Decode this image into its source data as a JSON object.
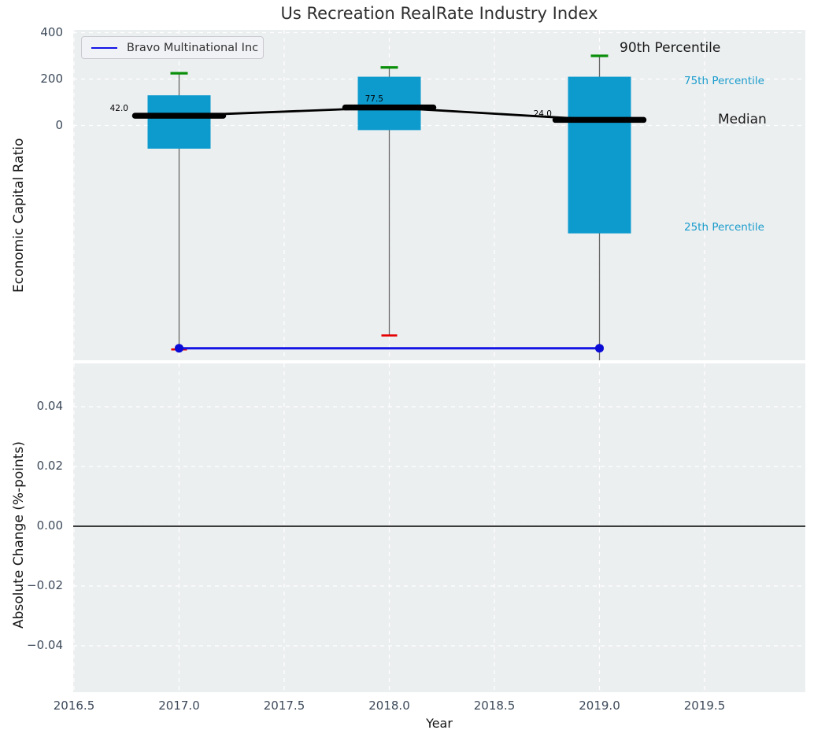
{
  "figure_title": "Us Recreation RealRate Industry Index",
  "chart_data": [
    {
      "type": "boxplot",
      "title": "Us Recreation RealRate Industry Index",
      "ylabel": "Economic Capital Ratio",
      "grid": true,
      "legend_position": "upper left",
      "legend": {
        "label": "Bravo Multinational Inc"
      },
      "ylim": [
        -1012,
        412
      ],
      "xlim": [
        2016.5,
        2019.98
      ],
      "yticks": [
        {
          "v": 400,
          "label": "400"
        },
        {
          "v": 200,
          "label": "200"
        },
        {
          "v": 0,
          "label": "0"
        }
      ],
      "boxes": [
        {
          "year": 2017,
          "p90": 225,
          "q3": 130,
          "median": 42.0,
          "q1": -100,
          "p10": -965,
          "median_label": "42.0"
        },
        {
          "year": 2018,
          "p90": 250,
          "q3": 210,
          "median": 77.5,
          "q1": -20,
          "p10": -905,
          "median_label": "77.5"
        },
        {
          "year": 2019,
          "p90": 300,
          "q3": 210,
          "median": 24.0,
          "q1": -465,
          "p10": -1020,
          "median_label": "24.0"
        }
      ],
      "company_series": {
        "name": "Bravo Multinational Inc",
        "x": [
          2017,
          2019
        ],
        "y": [
          -960,
          -960
        ],
        "markers": "endpoints"
      },
      "annotations": [
        "90th Percentile",
        "75th Percentile",
        "Median",
        "25th Percentile"
      ],
      "colors": {
        "box_fill": "#0d9bce",
        "p90_cap": "#0a8f0a",
        "p10_cap": "#e60000",
        "median_line": "#000000",
        "company_line": "#1414e6",
        "percentile_text": "#1a9ccc",
        "whisker": "#666666",
        "panel_bg": "#eceff0",
        "grid_line": "#ffffff"
      }
    },
    {
      "type": "line",
      "ylabel": "Absolute Change (%-points)",
      "xlabel": "Year",
      "grid": true,
      "ylim": [
        -0.0545,
        0.0545
      ],
      "zero_line": 0.0,
      "yticks": [
        {
          "v": 0.04,
          "label": "0.04"
        },
        {
          "v": 0.02,
          "label": "0.02"
        },
        {
          "v": 0.0,
          "label": "0.00"
        },
        {
          "v": -0.02,
          "label": "−0.02"
        },
        {
          "v": -0.04,
          "label": "−0.04"
        }
      ],
      "xticks": [
        {
          "v": 2016.5,
          "label": "2016.5"
        },
        {
          "v": 2017.0,
          "label": "2017.0"
        },
        {
          "v": 2017.5,
          "label": "2017.5"
        },
        {
          "v": 2018.0,
          "label": "2018.0"
        },
        {
          "v": 2018.5,
          "label": "2018.5"
        },
        {
          "v": 2019.0,
          "label": "2019.0"
        },
        {
          "v": 2019.5,
          "label": "2019.5"
        }
      ]
    }
  ]
}
